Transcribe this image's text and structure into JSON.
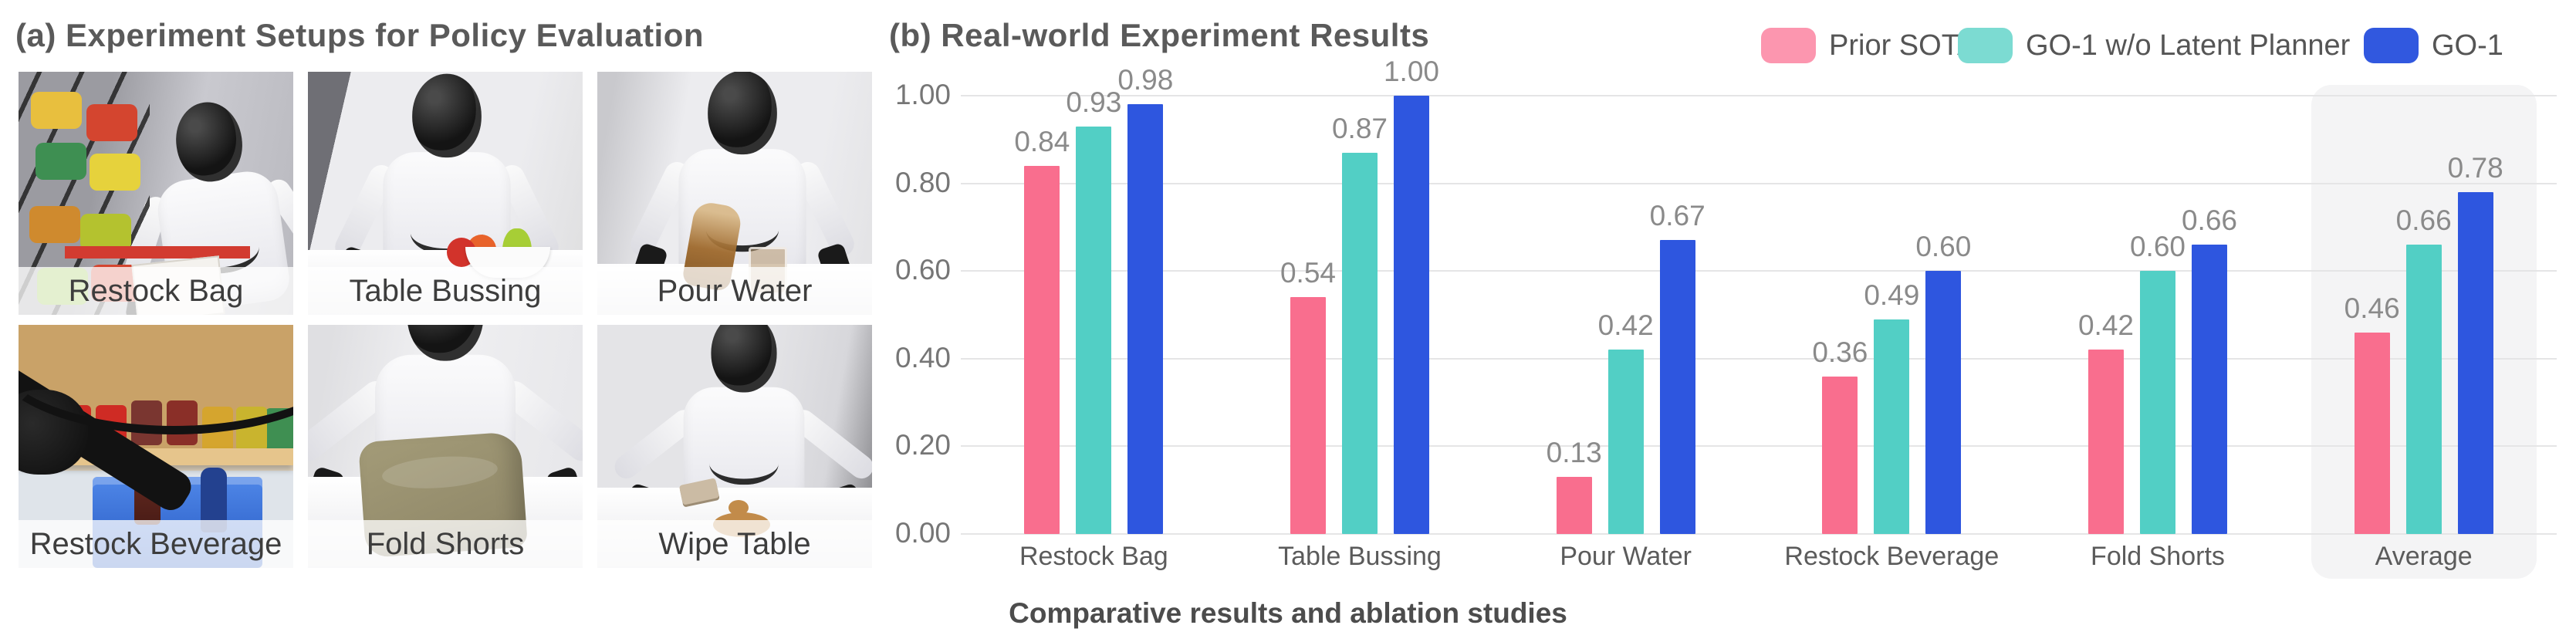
{
  "figure": {
    "panel_a": {
      "title": "(a) Experiment Setups for Policy Evaluation",
      "setups": [
        {
          "label": "Restock Bag"
        },
        {
          "label": "Table Bussing"
        },
        {
          "label": "Pour Water"
        },
        {
          "label": "Restock Beverage"
        },
        {
          "label": "Fold Shorts"
        },
        {
          "label": "Wipe Table"
        }
      ]
    },
    "panel_b": {
      "title": "(b) Real-world Experiment Results",
      "caption": "Comparative results and ablation studies"
    }
  },
  "chart_data": {
    "type": "bar",
    "title": "(b) Real-world Experiment Results",
    "categories": [
      "Restock Bag",
      "Table Bussing",
      "Pour Water",
      "Restock Beverage",
      "Fold Shorts",
      "Average"
    ],
    "series": [
      {
        "name": "Prior SOTA",
        "color": "#f96e8e",
        "legend_swatch_color": "#fc96af",
        "values": [
          0.84,
          0.54,
          0.13,
          0.36,
          0.42,
          0.46
        ]
      },
      {
        "name": "GO-1 w/o Latent Planner",
        "color": "#52cfc5",
        "legend_swatch_color": "#7cdbd2",
        "values": [
          0.93,
          0.87,
          0.42,
          0.49,
          0.6,
          0.66
        ]
      },
      {
        "name": "GO-1",
        "color": "#2e56df",
        "legend_swatch_color": "#3158df",
        "values": [
          0.98,
          1.0,
          0.67,
          0.6,
          0.66,
          0.78
        ]
      }
    ],
    "y_ticks": [
      "0.00",
      "0.20",
      "0.40",
      "0.60",
      "0.80",
      "1.00"
    ],
    "ylim": [
      0,
      1.0
    ],
    "grid": true,
    "legend_position": "top-right",
    "highlighted_category": "Average",
    "value_label_format": "2dp",
    "xlabel": "",
    "ylabel": "",
    "grid_color": "#e5e5e6",
    "highlight_color": "#f4f4f5",
    "text_color": "#5a5a5a"
  }
}
